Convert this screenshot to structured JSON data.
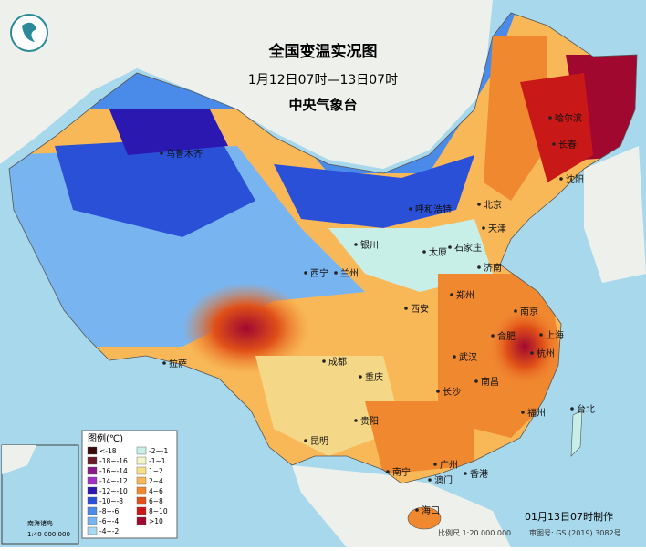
{
  "header": {
    "title": "全国变温实况图",
    "subtitle": "1月12日07时—13日07时",
    "agency": "中央气象台"
  },
  "legend": {
    "title": "图例(℃)",
    "items": [
      {
        "label": "<-18",
        "color": "#3a0a0a"
      },
      {
        "label": "-18~-16",
        "color": "#6b1a2a"
      },
      {
        "label": "-16~-14",
        "color": "#8a1a8a"
      },
      {
        "label": "-14~-12",
        "color": "#a030c8"
      },
      {
        "label": "-12~-10",
        "color": "#2a18b0"
      },
      {
        "label": "-10~-8",
        "color": "#2a50d8"
      },
      {
        "label": "-8~-6",
        "color": "#4a8ae8"
      },
      {
        "label": "-6~-4",
        "color": "#78b4f0"
      },
      {
        "label": "-4~-2",
        "color": "#a8d8f4"
      },
      {
        "label": "-2~-1",
        "color": "#c8eee8"
      },
      {
        "label": "-1~1",
        "color": "#f4f4c8"
      },
      {
        "label": "1~2",
        "color": "#f8e08a"
      },
      {
        "label": "2~4",
        "color": "#f8b858"
      },
      {
        "label": "4~6",
        "color": "#f08830"
      },
      {
        "label": "6~8",
        "color": "#e05018"
      },
      {
        "label": "8~10",
        "color": "#c81818"
      },
      {
        "label": ">10",
        "color": "#a00830"
      }
    ]
  },
  "cities": [
    "哈尔滨",
    "长春",
    "沈阳",
    "北京",
    "天津",
    "呼和浩特",
    "石家庄",
    "太原",
    "济南",
    "银川",
    "西宁",
    "兰州",
    "郑州",
    "西安",
    "合肥",
    "南京",
    "上海",
    "杭州",
    "武汉",
    "成都",
    "拉萨",
    "重庆",
    "长沙",
    "南昌",
    "福州",
    "台北",
    "贵阳",
    "昆明",
    "南宁",
    "广州",
    "香港",
    "澳门",
    "海口",
    "乌鲁木齐"
  ],
  "inset": {
    "title": "南海诸岛",
    "scale": "1:40 000 000"
  },
  "footer": {
    "made": "01月13日07时制作",
    "scale": "比例尺 1:20 000 000",
    "review": "审图号: GS (2019) 3082号"
  }
}
